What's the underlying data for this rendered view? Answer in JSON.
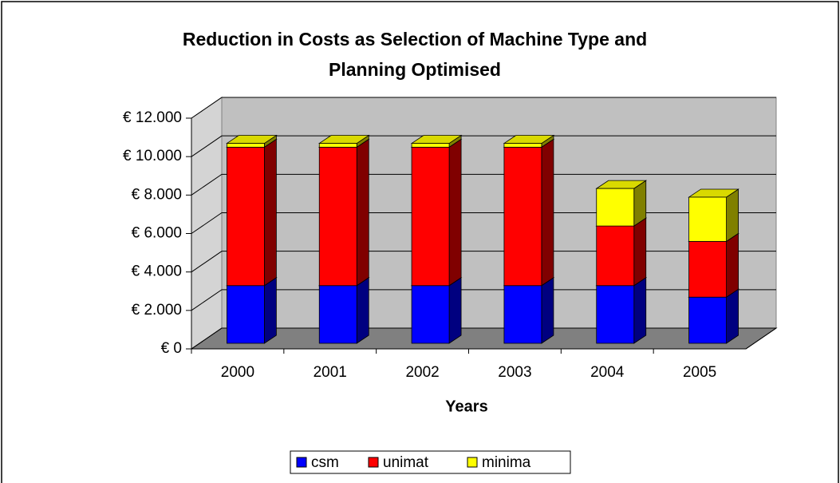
{
  "chart_data": {
    "type": "bar",
    "stacked": true,
    "title": "Reduction in Costs as Selection of Machine Type and Planning Optimised",
    "x_label": "Years",
    "categories": [
      "2000",
      "2001",
      "2002",
      "2003",
      "2004",
      "2005"
    ],
    "series": [
      {
        "name": "csm",
        "color": "#0000ff",
        "values": [
          3000,
          3000,
          3000,
          3000,
          3000,
          2400
        ]
      },
      {
        "name": "unimat",
        "color": "#ff0000",
        "values": [
          7200,
          7200,
          7200,
          7200,
          3100,
          2900
        ]
      },
      {
        "name": "minima",
        "color": "#ffff00",
        "values": [
          200,
          200,
          200,
          200,
          1950,
          2300
        ]
      }
    ],
    "ylim": [
      0,
      12000
    ],
    "yticks": [
      {
        "value": 0,
        "label": "€ 0"
      },
      {
        "value": 2000,
        "label": "€ 2.000"
      },
      {
        "value": 4000,
        "label": "€ 4.000"
      },
      {
        "value": 6000,
        "label": "€ 6.000"
      },
      {
        "value": 8000,
        "label": "€ 8.000"
      },
      {
        "value": 10000,
        "label": "€ 10.000"
      },
      {
        "value": 12000,
        "label": "€ 12.000"
      }
    ],
    "grid": true,
    "legend": "bottom"
  }
}
